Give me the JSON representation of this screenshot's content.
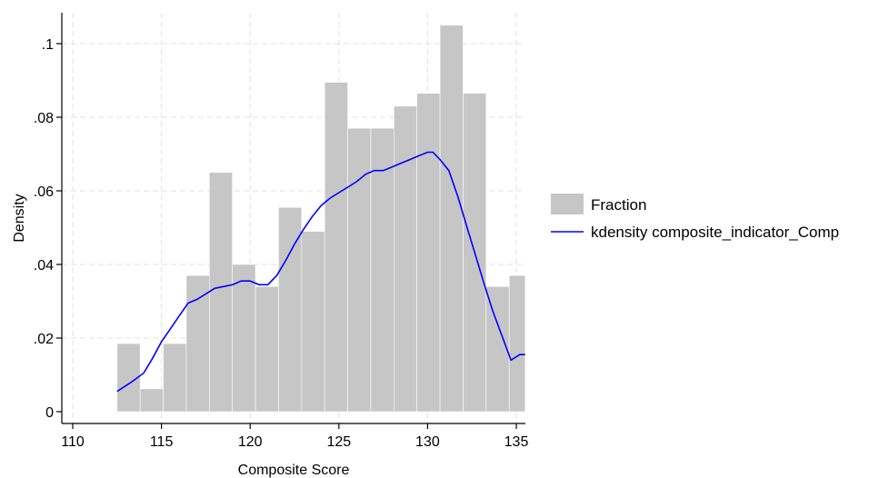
{
  "chart_data": {
    "type": "bar",
    "xlabel": "Composite Score",
    "ylabel": "Density",
    "xlim": [
      109,
      135.5
    ],
    "ylim": [
      0,
      0.105
    ],
    "x_ticks": [
      110,
      115,
      120,
      125,
      130,
      135
    ],
    "x_tick_labels": [
      "110",
      "115",
      "120",
      "125",
      "130",
      "135"
    ],
    "y_ticks": [
      0,
      0.02,
      0.04,
      0.06,
      0.08,
      0.1
    ],
    "y_tick_labels": [
      "0",
      ".02",
      ".04",
      ".06",
      ".08",
      ".1"
    ],
    "grid": true,
    "legend_position": "right",
    "series": [
      {
        "name": "Fraction",
        "type": "bar",
        "color": "#c6c6c6",
        "bin_edges": [
          112.5,
          113.8,
          115.1,
          116.4,
          117.7,
          119.0,
          120.3,
          121.6,
          122.9,
          124.2,
          125.5,
          126.8,
          128.1,
          129.4,
          130.7,
          132.0,
          133.3,
          134.6,
          135.5
        ],
        "values": [
          0.0185,
          0.0062,
          0.0185,
          0.037,
          0.065,
          0.04,
          0.034,
          0.0555,
          0.049,
          0.0895,
          0.077,
          0.077,
          0.083,
          0.0865,
          0.105,
          0.0865,
          0.034,
          0.037
        ]
      },
      {
        "name": "kdensity composite_indicator_Comp",
        "type": "line",
        "color": "#0000ff",
        "x": [
          112.5,
          113.3,
          114.0,
          114.5,
          115.0,
          115.5,
          116.0,
          116.5,
          117.0,
          117.5,
          118.0,
          118.5,
          119.0,
          119.5,
          120.0,
          120.5,
          121.0,
          121.5,
          122.0,
          122.5,
          123.0,
          123.5,
          124.0,
          124.5,
          125.0,
          125.5,
          126.0,
          126.5,
          127.0,
          127.5,
          128.0,
          128.5,
          129.0,
          129.5,
          130.0,
          130.3,
          130.7,
          131.2,
          131.7,
          132.2,
          132.7,
          133.2,
          133.7,
          134.2,
          134.7,
          135.2,
          135.5
        ],
        "y": [
          0.0055,
          0.008,
          0.0105,
          0.0145,
          0.019,
          0.0225,
          0.026,
          0.0295,
          0.0305,
          0.032,
          0.0335,
          0.034,
          0.0345,
          0.0355,
          0.0355,
          0.0345,
          0.0345,
          0.037,
          0.041,
          0.0455,
          0.0495,
          0.053,
          0.056,
          0.058,
          0.0595,
          0.061,
          0.0625,
          0.0645,
          0.0655,
          0.0655,
          0.0665,
          0.0675,
          0.0685,
          0.0695,
          0.0705,
          0.0705,
          0.0685,
          0.0655,
          0.0585,
          0.0505,
          0.0425,
          0.0345,
          0.027,
          0.0205,
          0.014,
          0.0155,
          0.0155
        ]
      }
    ]
  }
}
